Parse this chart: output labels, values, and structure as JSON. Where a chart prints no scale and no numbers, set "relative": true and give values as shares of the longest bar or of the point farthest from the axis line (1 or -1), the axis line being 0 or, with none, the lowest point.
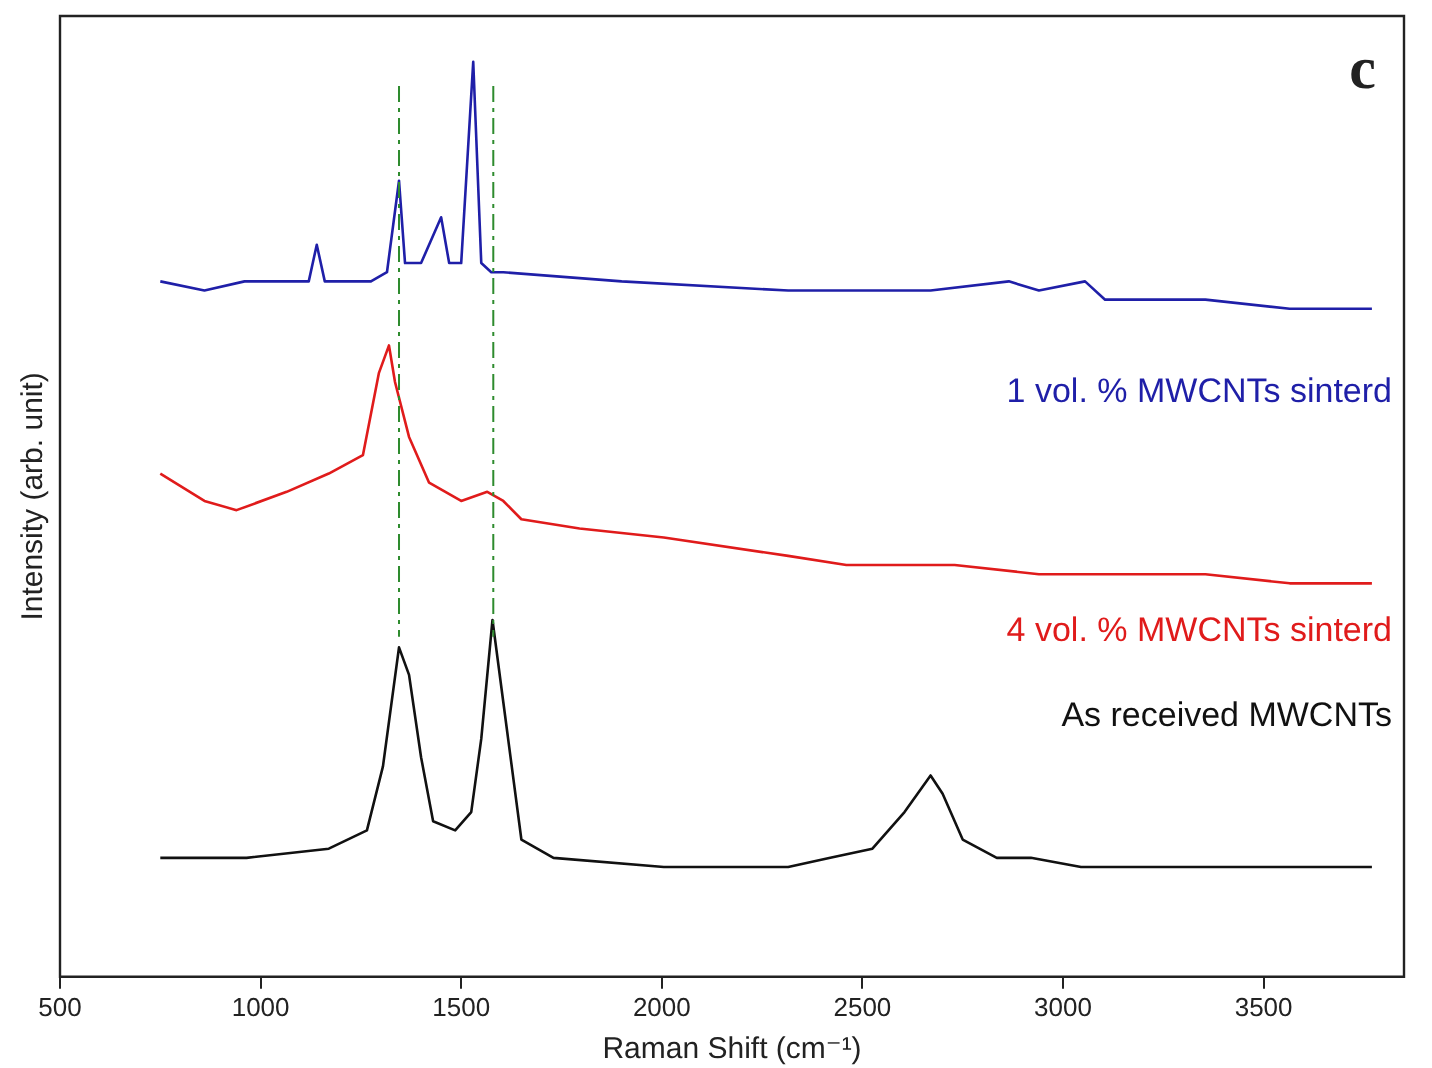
{
  "chart_data": {
    "type": "line",
    "relative": true,
    "xlabel": "Raman Shift (cm⁻¹)",
    "ylabel": "Intensity (arb. unit)",
    "xlim": [
      500,
      3850
    ],
    "xticks": [
      500,
      1000,
      1500,
      2000,
      2500,
      3000,
      3500
    ],
    "grid": false,
    "legend": false,
    "marker": "none",
    "line_style": "solid",
    "annotations": [
      "c"
    ],
    "ref_lines": [
      {
        "axis": "x",
        "value": 1345,
        "color": "#2e8b2e",
        "line_style": "dashdot"
      },
      {
        "axis": "x",
        "value": 1580,
        "color": "#2e8b2e",
        "line_style": "dashdot"
      }
    ],
    "series": [
      {
        "name": "1 vol. % MWCNTs sinterd",
        "color": "#1f1fa8",
        "x": [
          750,
          860,
          960,
          1050,
          1120,
          1140,
          1160,
          1275,
          1315,
          1345,
          1360,
          1400,
          1450,
          1470,
          1500,
          1530,
          1550,
          1575,
          1605,
          1900,
          2315,
          2670,
          2865,
          2940,
          3055,
          3105,
          3355,
          3565,
          3770
        ],
        "values": [
          0.76,
          0.75,
          0.76,
          0.76,
          0.76,
          0.8,
          0.76,
          0.76,
          0.77,
          0.87,
          0.78,
          0.78,
          0.83,
          0.78,
          0.78,
          1,
          0.78,
          0.77,
          0.77,
          0.76,
          0.75,
          0.75,
          0.76,
          0.75,
          0.76,
          0.74,
          0.74,
          0.73,
          0.73
        ]
      },
      {
        "name": "4 vol. % MWCNTs sinterd",
        "color": "#e01b1b",
        "x": [
          750,
          860,
          940,
          1065,
          1170,
          1255,
          1295,
          1320,
          1335,
          1370,
          1420,
          1500,
          1565,
          1605,
          1650,
          1795,
          2005,
          2315,
          2460,
          2730,
          2940,
          3145,
          3355,
          3565,
          3770
        ],
        "values": [
          0.55,
          0.52,
          0.51,
          0.53,
          0.55,
          0.57,
          0.66,
          0.69,
          0.65,
          0.59,
          0.54,
          0.52,
          0.53,
          0.52,
          0.5,
          0.49,
          0.48,
          0.46,
          0.45,
          0.45,
          0.44,
          0.44,
          0.44,
          0.43,
          0.43
        ]
      },
      {
        "name": "As received MWCNTs",
        "color": "#111111",
        "x": [
          750,
          965,
          1170,
          1265,
          1305,
          1345,
          1370,
          1400,
          1430,
          1485,
          1525,
          1550,
          1578,
          1605,
          1650,
          1730,
          2005,
          2315,
          2420,
          2525,
          2605,
          2670,
          2700,
          2750,
          2835,
          2920,
          3045,
          3190,
          3355,
          3770
        ],
        "values": [
          0.13,
          0.13,
          0.14,
          0.16,
          0.23,
          0.36,
          0.33,
          0.24,
          0.17,
          0.16,
          0.18,
          0.26,
          0.39,
          0.3,
          0.15,
          0.13,
          0.12,
          0.12,
          0.13,
          0.14,
          0.18,
          0.22,
          0.2,
          0.15,
          0.13,
          0.13,
          0.12,
          0.12,
          0.12,
          0.12
        ]
      }
    ]
  }
}
